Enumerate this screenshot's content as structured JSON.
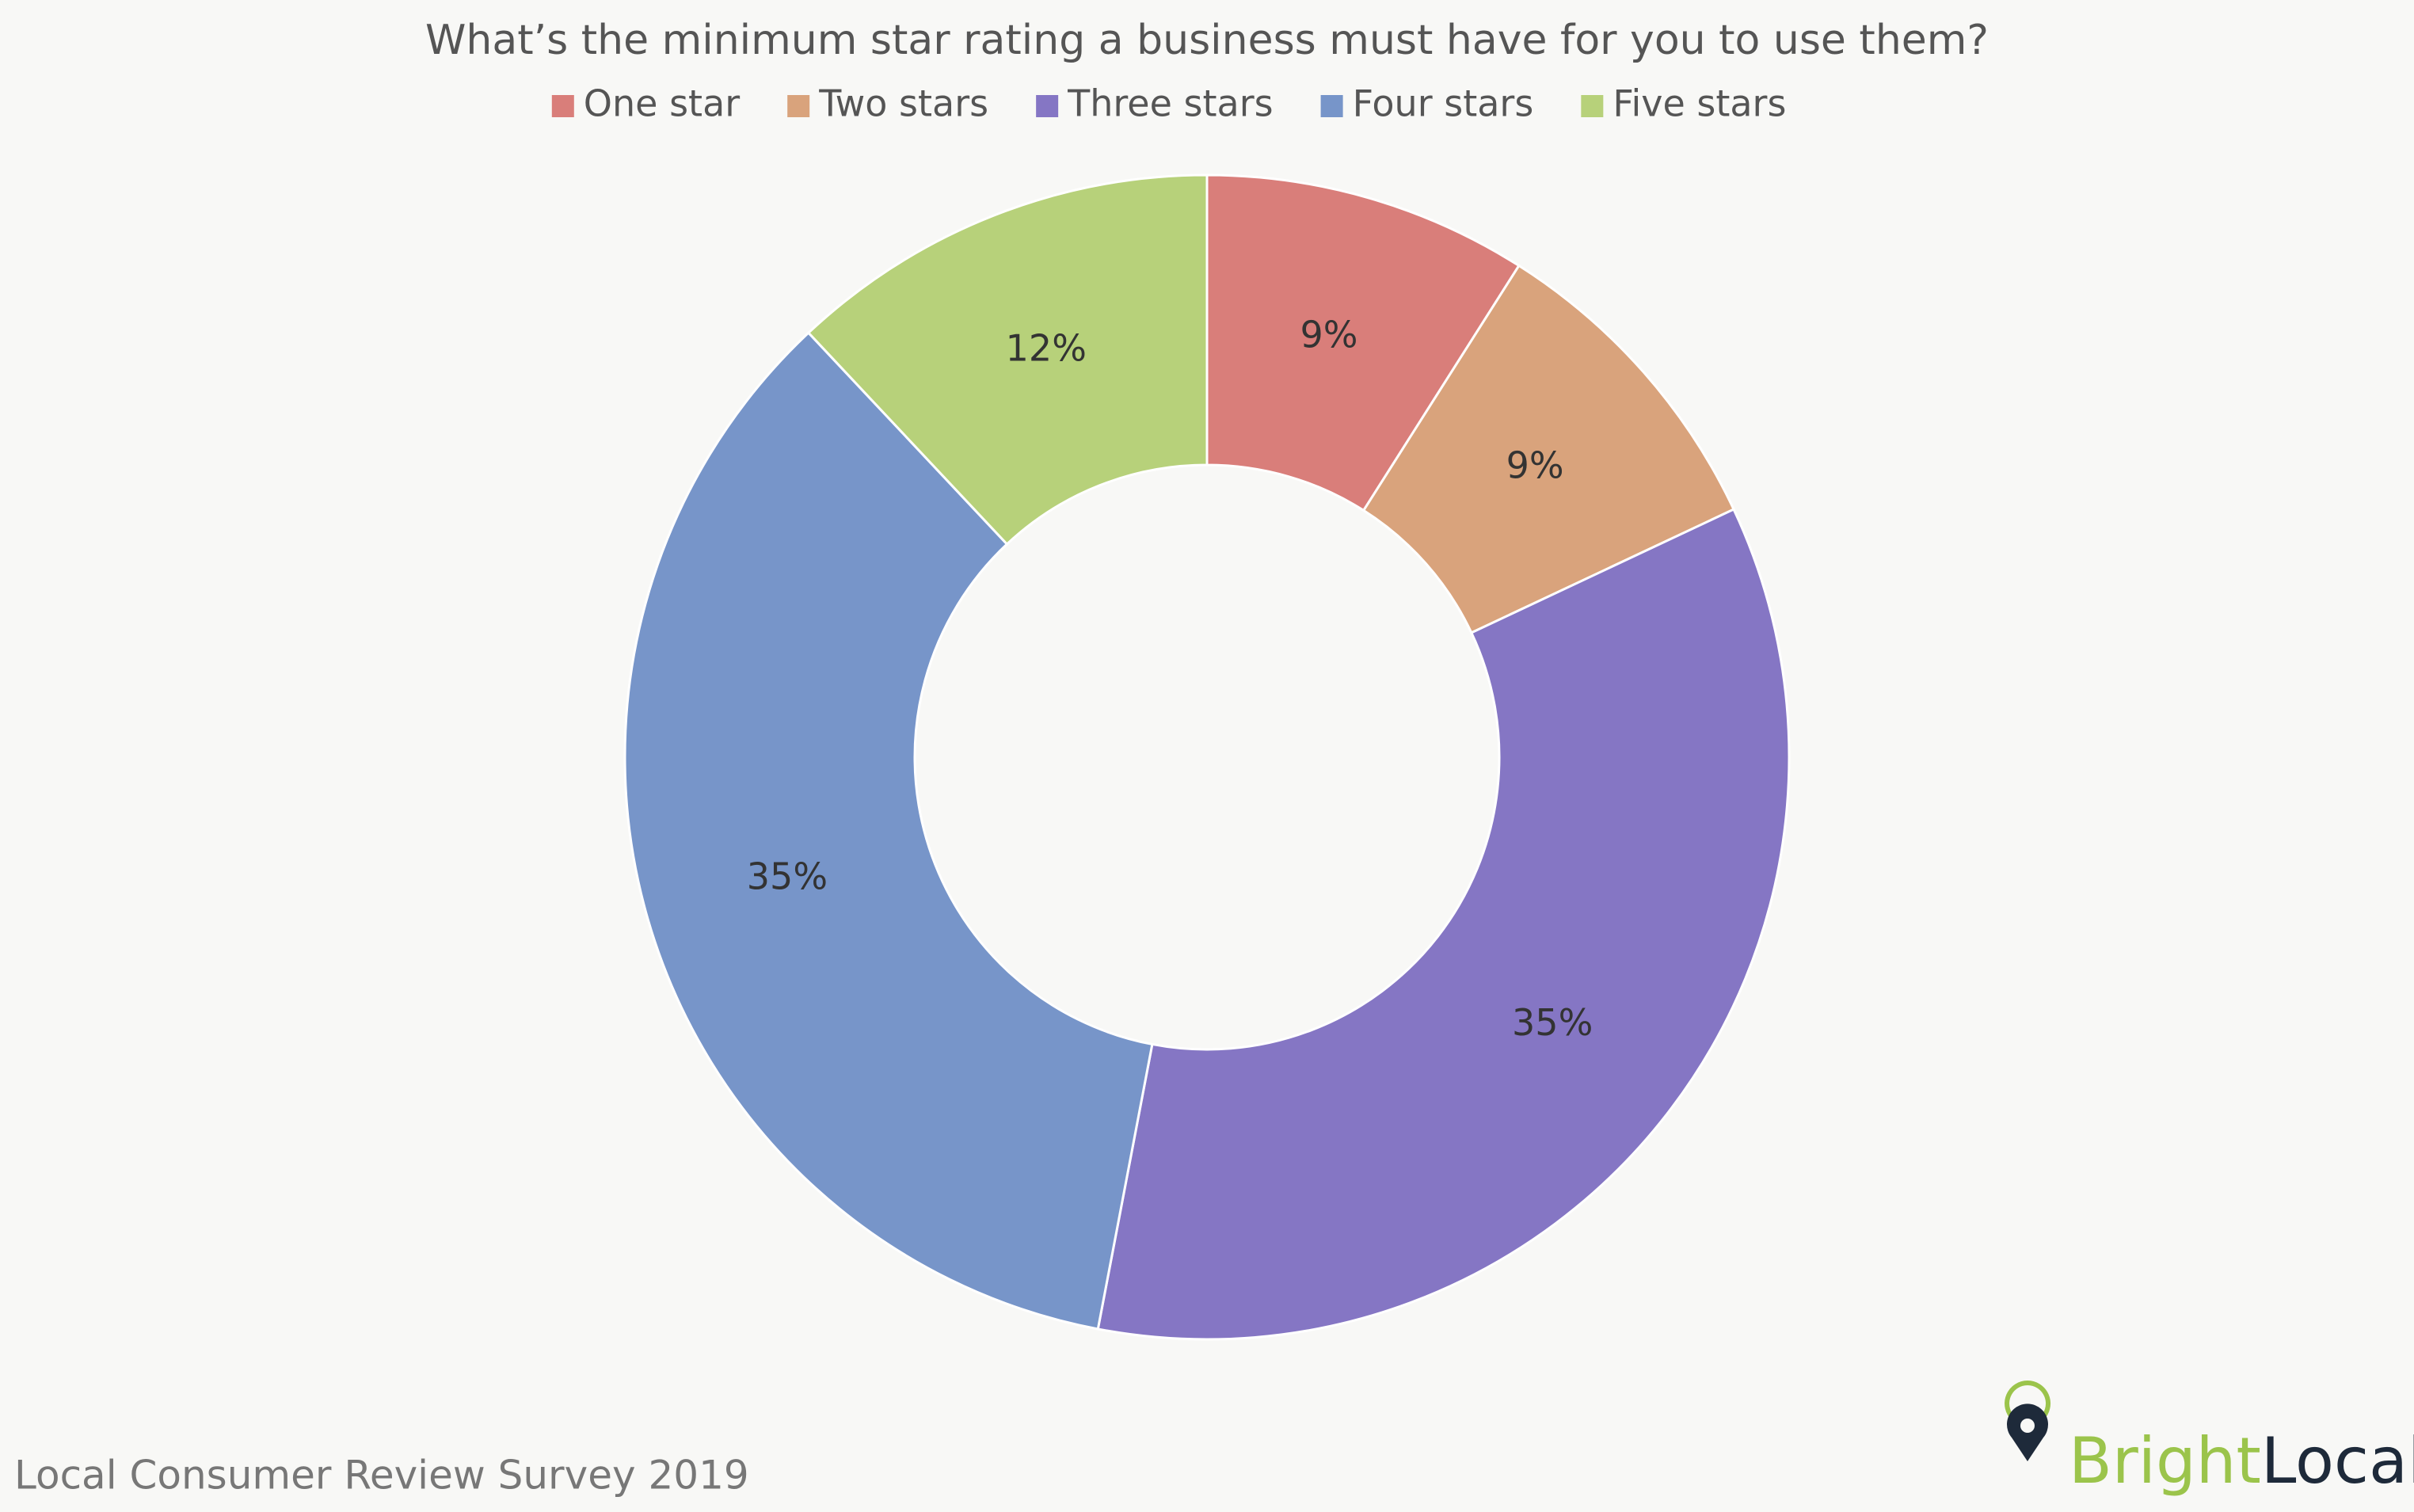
{
  "chart_data": {
    "type": "donut",
    "title": "What’s the minimum star rating a business must have for you to use them?",
    "categories": [
      "One star",
      "Two stars",
      "Three stars",
      "Four stars",
      "Five stars"
    ],
    "values": [
      9,
      9,
      35,
      35,
      12
    ],
    "value_labels": [
      "9%",
      "9%",
      "35%",
      "35%",
      "12%"
    ],
    "colors": [
      "#d97e7a",
      "#d9a37c",
      "#8576c4",
      "#7795c9",
      "#b7d17a"
    ],
    "legend": "top"
  },
  "footer": "Local Consumer Review Survey 2019",
  "logo": {
    "first": "Bright",
    "second": "Local"
  }
}
